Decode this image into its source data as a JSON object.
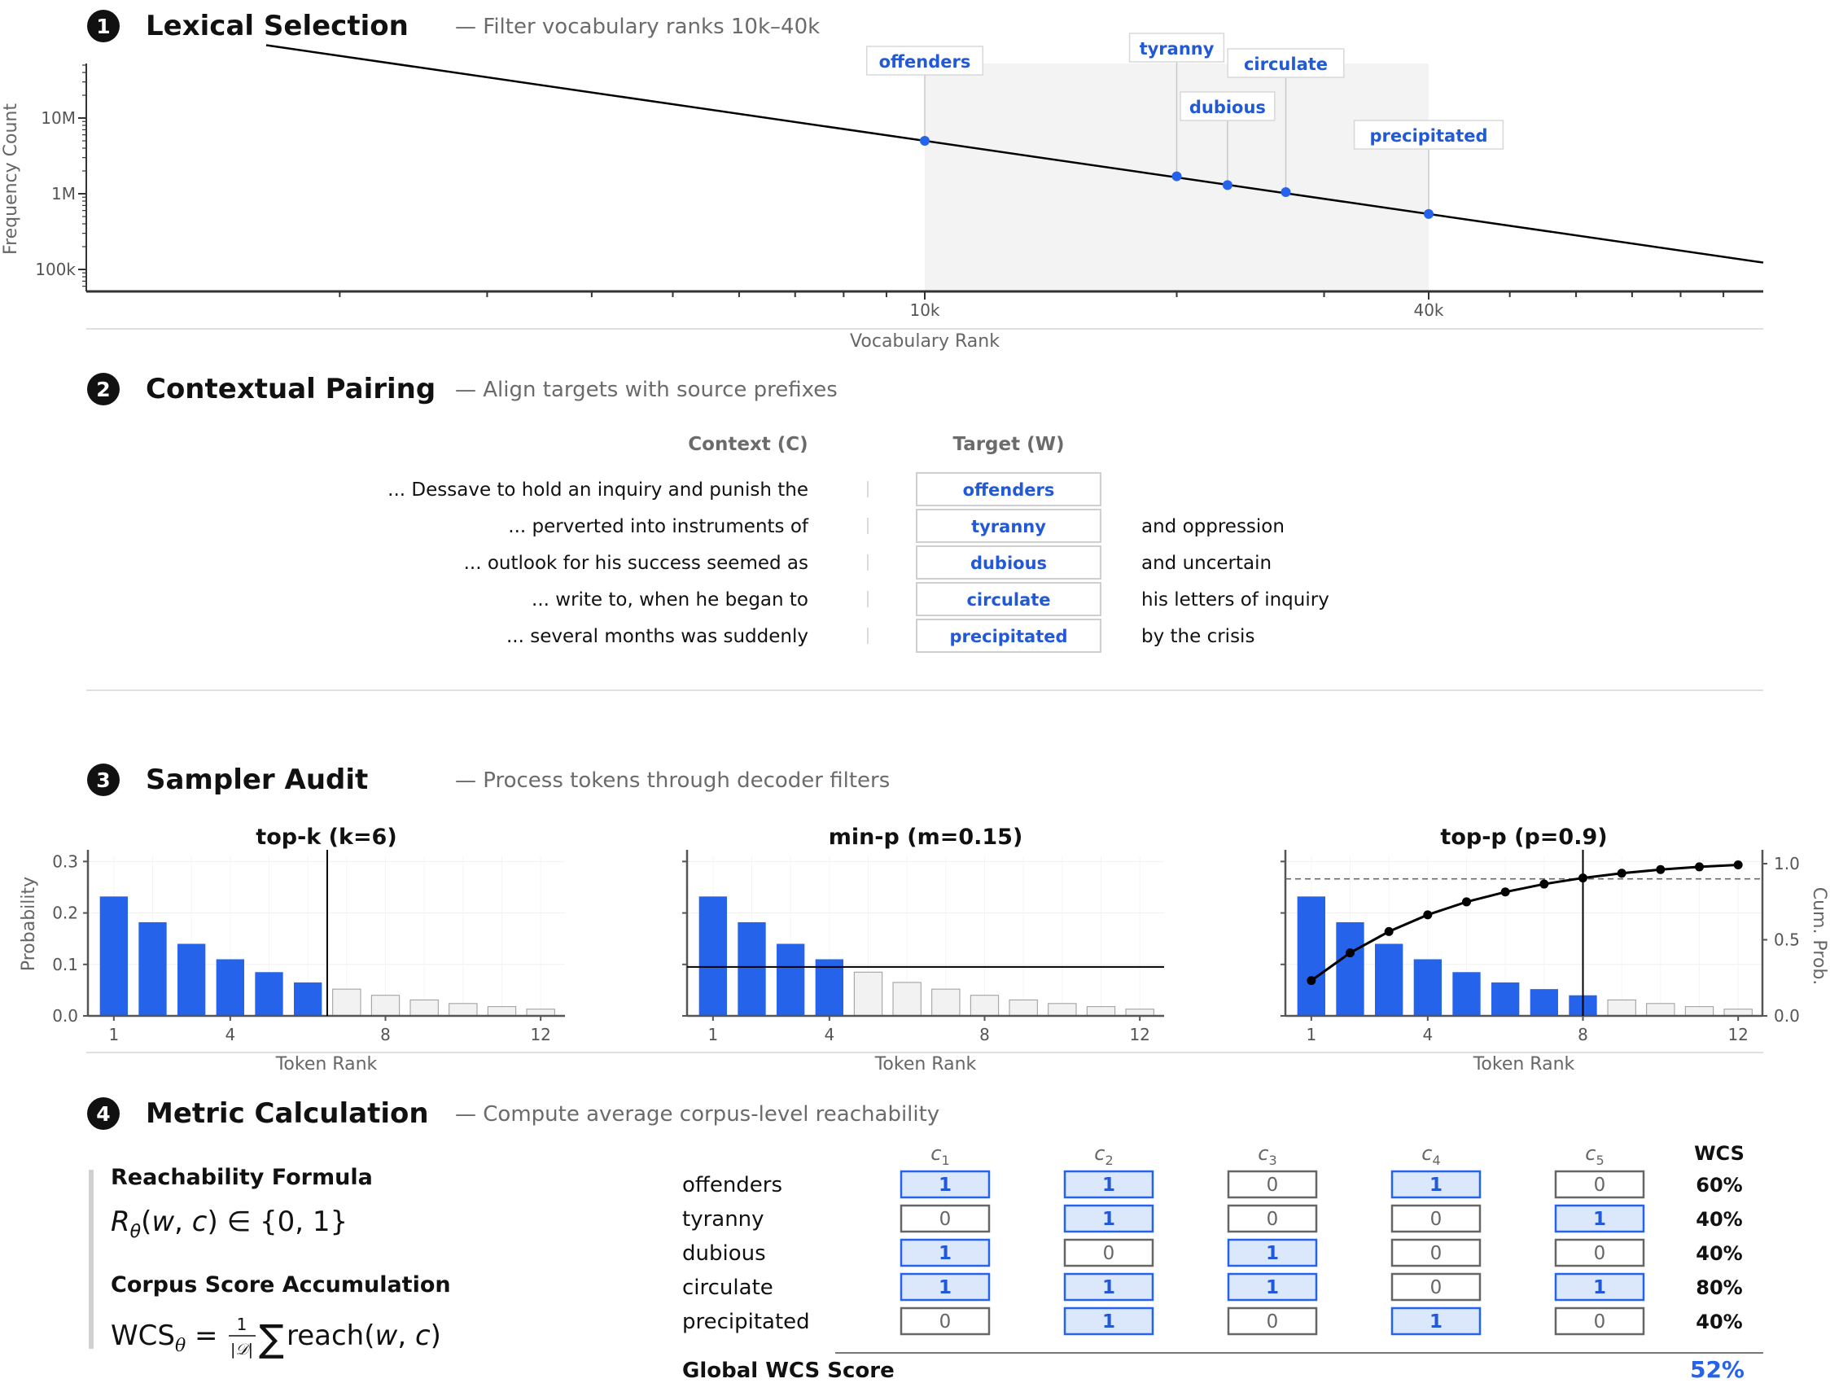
{
  "sections": [
    {
      "num": "1",
      "title": "Lexical Selection",
      "subtitle": "— Filter vocabulary ranks 10k–40k"
    },
    {
      "num": "2",
      "title": "Contextual Pairing",
      "subtitle": "— Align targets with source prefixes"
    },
    {
      "num": "3",
      "title": "Sampler Audit",
      "subtitle": "— Process tokens through decoder filters"
    },
    {
      "num": "4",
      "title": "Metric Calculation",
      "subtitle": "— Compute average corpus-level reachability"
    }
  ],
  "chart_data": [
    {
      "type": "line",
      "title": "Lexical Selection",
      "xlabel": "Vocabulary Rank",
      "ylabel": "Frequency Count",
      "x_scale": "log",
      "y_scale": "log",
      "x_ticks": [
        "10k",
        "40k"
      ],
      "y_ticks": [
        "10M",
        "1M",
        "100k"
      ],
      "x": [
        1000,
        200000
      ],
      "y": [
        50000000,
        100000
      ],
      "highlight_range": [
        10000,
        40000
      ],
      "points": [
        {
          "label": "offenders",
          "rank": 10000,
          "freq": 5000000
        },
        {
          "label": "tyranny",
          "rank": 20000,
          "freq": 1700000
        },
        {
          "label": "dubious",
          "rank": 23000,
          "freq": 1300000
        },
        {
          "label": "circulate",
          "rank": 27000,
          "freq": 1050000
        },
        {
          "label": "precipitated",
          "rank": 40000,
          "freq": 540000
        }
      ],
      "colors": {
        "line": "#000000",
        "point": "#2563eb",
        "band": "#f3f3f3"
      }
    },
    {
      "type": "bar",
      "title": "top-k (k=6)",
      "xlabel": "Token Rank",
      "ylabel": "Probability",
      "x_ticks": [
        "1",
        "4",
        "8",
        "12"
      ],
      "y_ticks": [
        "0.0",
        "0.1",
        "0.2",
        "0.3"
      ],
      "ylim": [
        0,
        0.31
      ],
      "categories": [
        1,
        2,
        3,
        4,
        5,
        6,
        7,
        8,
        9,
        10,
        11,
        12
      ],
      "values": [
        0.232,
        0.182,
        0.14,
        0.11,
        0.085,
        0.065,
        0.052,
        0.04,
        0.031,
        0.024,
        0.018,
        0.013
      ],
      "kept": [
        true,
        true,
        true,
        true,
        true,
        true,
        false,
        false,
        false,
        false,
        false,
        false
      ],
      "threshold": {
        "orientation": "vertical",
        "x": 6.5
      }
    },
    {
      "type": "bar",
      "title": "min-p (m=0.15)",
      "xlabel": "Token Rank",
      "x_ticks": [
        "1",
        "4",
        "8",
        "12"
      ],
      "ylim": [
        0,
        0.31
      ],
      "categories": [
        1,
        2,
        3,
        4,
        5,
        6,
        7,
        8,
        9,
        10,
        11,
        12
      ],
      "values": [
        0.232,
        0.182,
        0.14,
        0.11,
        0.085,
        0.065,
        0.052,
        0.04,
        0.031,
        0.024,
        0.018,
        0.013
      ],
      "kept": [
        true,
        true,
        true,
        true,
        false,
        false,
        false,
        false,
        false,
        false,
        false,
        false
      ],
      "threshold": {
        "orientation": "horizontal",
        "y": 0.095
      }
    },
    {
      "type": "bar",
      "title": "top-p (p=0.9)",
      "xlabel": "Token Rank",
      "ylabel_right": "Cum. Prob.",
      "x_ticks": [
        "1",
        "4",
        "8",
        "12"
      ],
      "y_ticks_right": [
        "0.0",
        "0.5",
        "1.0"
      ],
      "ylim": [
        0,
        0.31
      ],
      "categories": [
        1,
        2,
        3,
        4,
        5,
        6,
        7,
        8,
        9,
        10,
        11,
        12
      ],
      "values": [
        0.232,
        0.182,
        0.14,
        0.11,
        0.085,
        0.065,
        0.052,
        0.04,
        0.031,
        0.024,
        0.018,
        0.013
      ],
      "kept": [
        true,
        true,
        true,
        true,
        true,
        true,
        true,
        true,
        false,
        false,
        false,
        false
      ],
      "cumulative": [
        0.232,
        0.414,
        0.554,
        0.664,
        0.749,
        0.814,
        0.866,
        0.906,
        0.937,
        0.961,
        0.979,
        0.992
      ],
      "cum_threshold": 0.9,
      "threshold": {
        "orientation": "vertical",
        "x": 8
      }
    }
  ],
  "pairing": {
    "context_header": "Context (C)",
    "target_header": "Target (W)",
    "rows": [
      {
        "context": "... Dessave to hold an inquiry and punish the",
        "target": "offenders",
        "continuation": ""
      },
      {
        "context": "... perverted into instruments of",
        "target": "tyranny",
        "continuation": "and oppression"
      },
      {
        "context": "... outlook for his success seemed as",
        "target": "dubious",
        "continuation": "and uncertain"
      },
      {
        "context": "... write to, when he began to",
        "target": "circulate",
        "continuation": "his letters of inquiry"
      },
      {
        "context": "... several months was suddenly",
        "target": "precipitated",
        "continuation": "by the crisis"
      }
    ]
  },
  "metric": {
    "formula1_title": "Reachability Formula",
    "formula2_title": "Corpus Score Accumulation",
    "columns": [
      "c",
      "c",
      "c",
      "c",
      "c"
    ],
    "col_subscripts": [
      "1",
      "2",
      "3",
      "4",
      "5"
    ],
    "wcs_header": "WCS",
    "rows": [
      {
        "word": "offenders",
        "cells": [
          1,
          1,
          0,
          1,
          0
        ],
        "wcs": "60%"
      },
      {
        "word": "tyranny",
        "cells": [
          0,
          1,
          0,
          0,
          1
        ],
        "wcs": "40%"
      },
      {
        "word": "dubious",
        "cells": [
          1,
          0,
          1,
          0,
          0
        ],
        "wcs": "40%"
      },
      {
        "word": "circulate",
        "cells": [
          1,
          1,
          1,
          0,
          1
        ],
        "wcs": "80%"
      },
      {
        "word": "precipitated",
        "cells": [
          0,
          1,
          0,
          1,
          0
        ],
        "wcs": "40%"
      }
    ],
    "global_label": "Global WCS Score",
    "global_value": "52%"
  },
  "colors": {
    "accent": "#2563eb",
    "accent_text": "#2259d6",
    "cell_fill": "#dbe7fb",
    "muted_bar": "#f2f2f2"
  }
}
